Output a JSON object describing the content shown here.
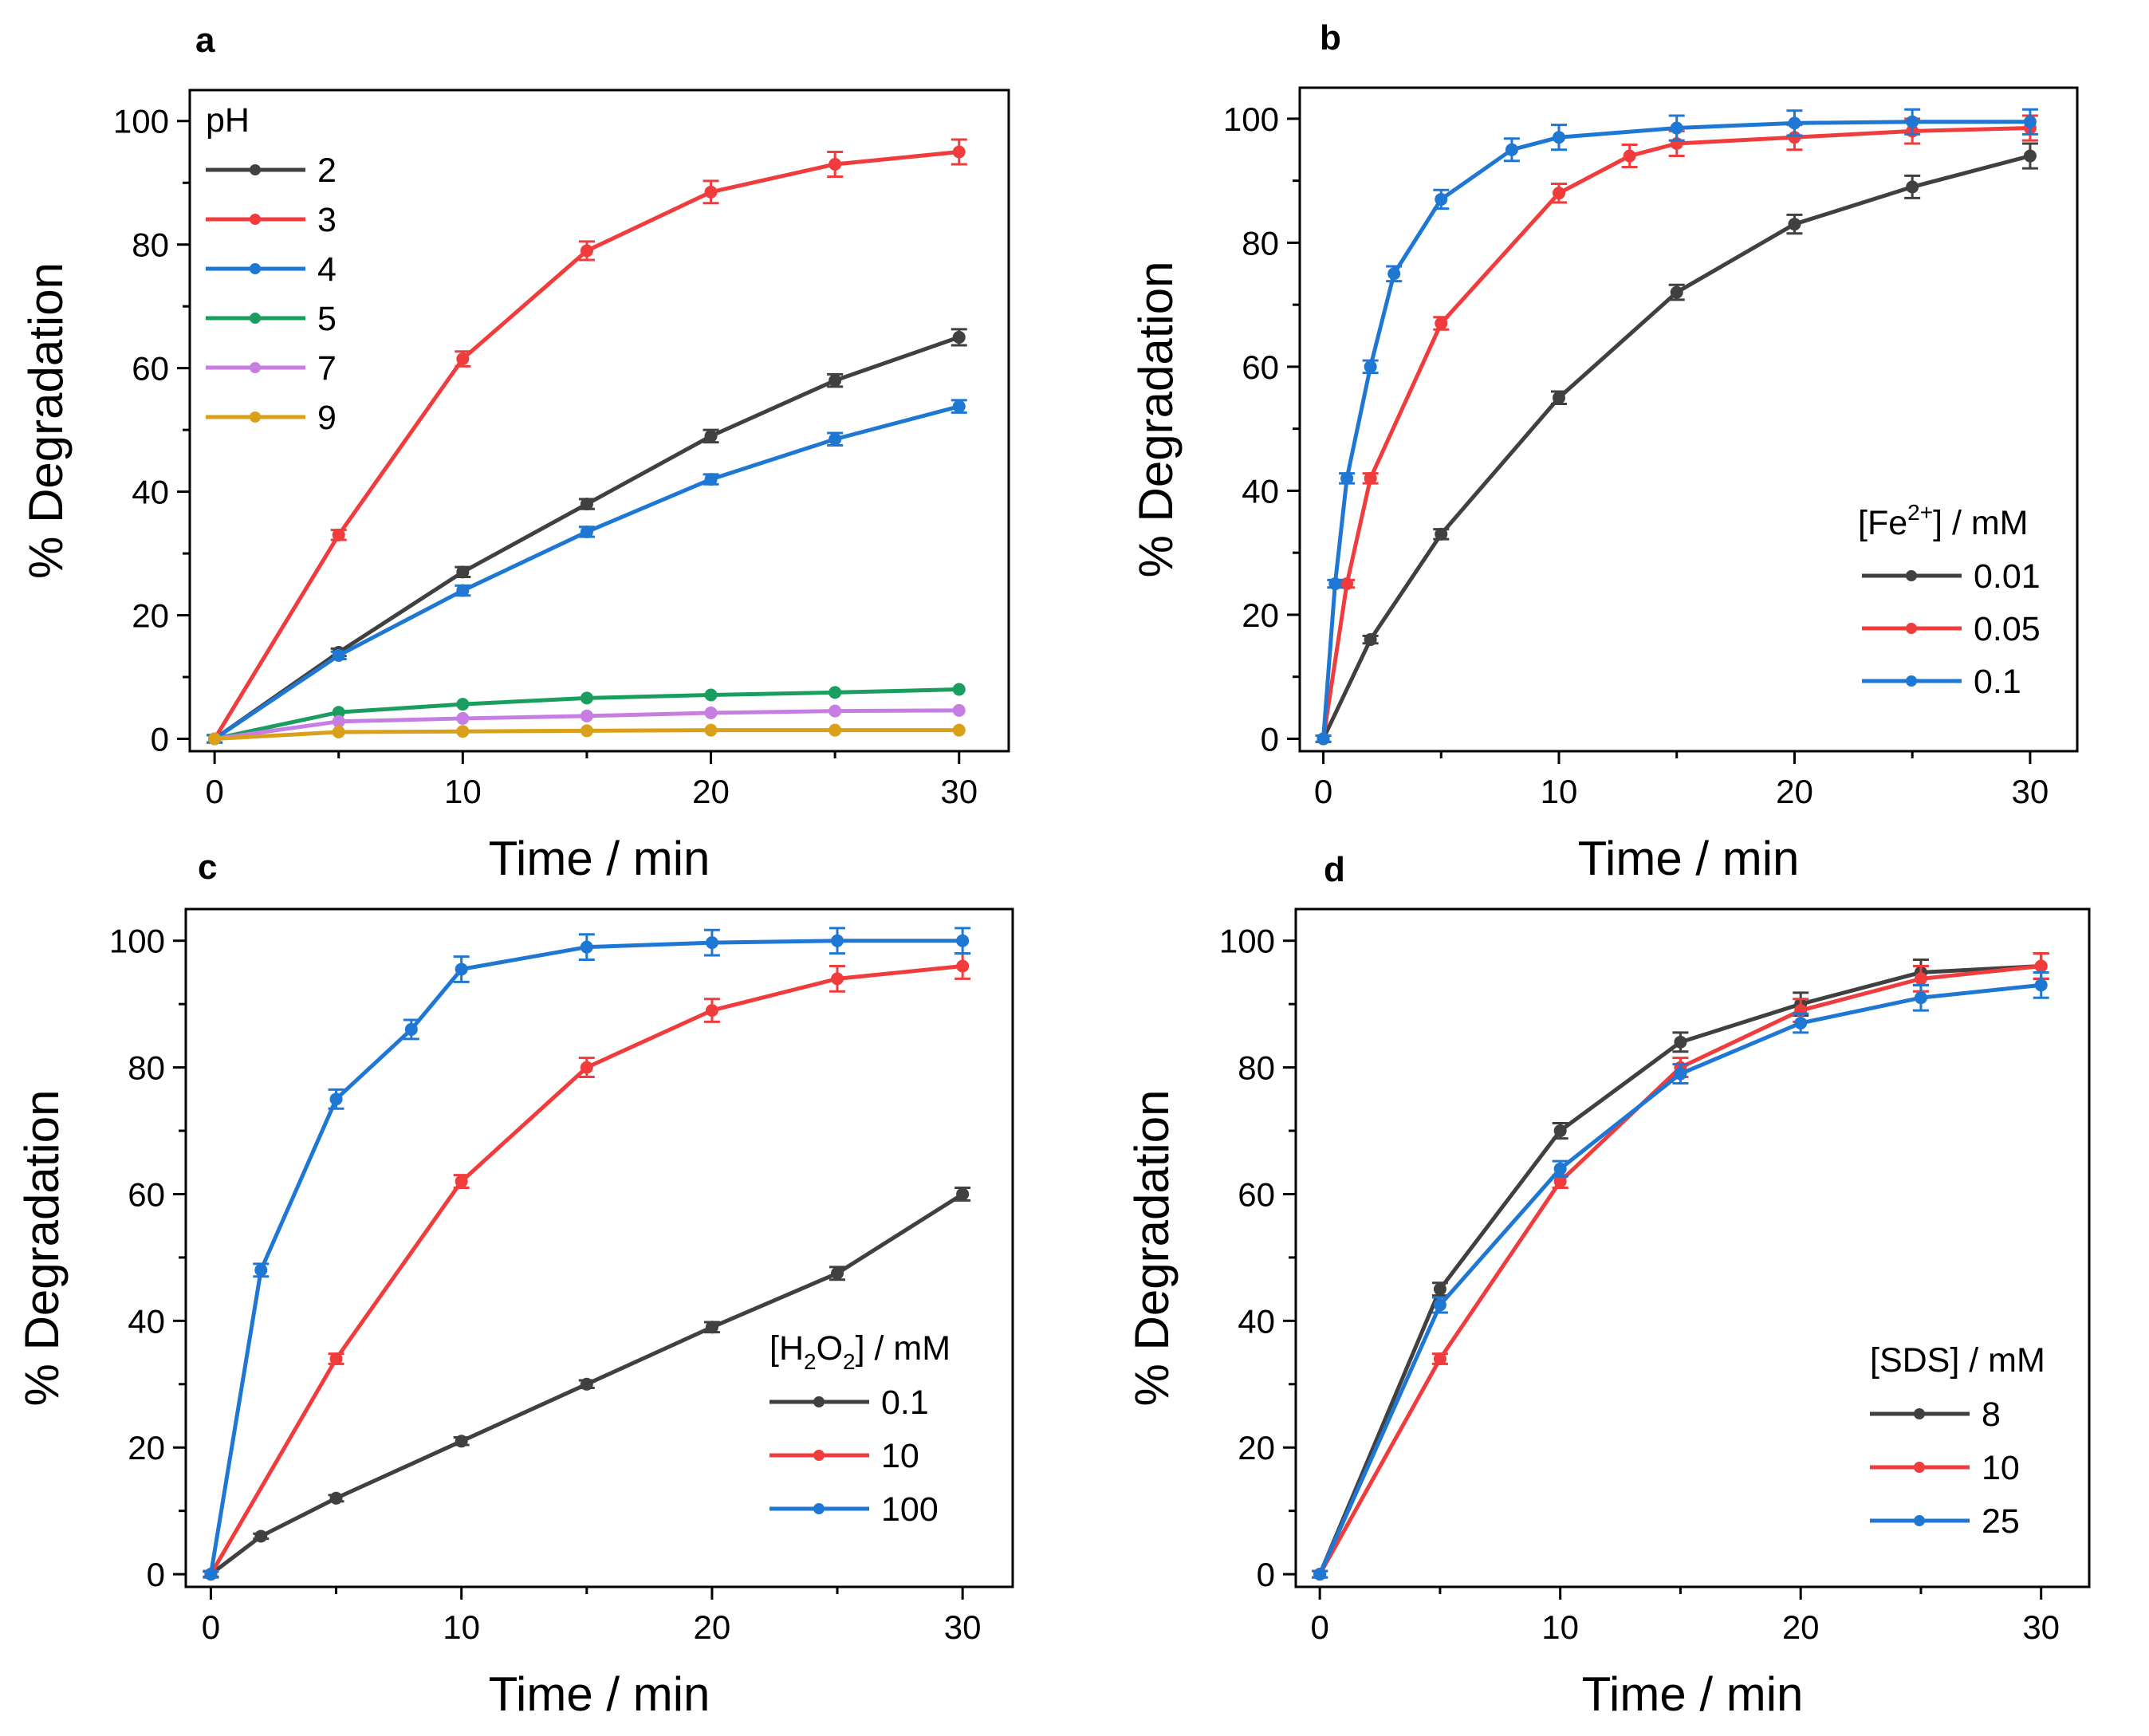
{
  "chart_data": [
    {
      "type": "line",
      "title": "a",
      "xlabel": "Time / min",
      "ylabel": "% Degradation",
      "xlim": [
        -1,
        32
      ],
      "ylim": [
        -2,
        105
      ],
      "xticks": [
        0,
        10,
        20,
        30
      ],
      "yticks": [
        0,
        20,
        40,
        60,
        80,
        100
      ],
      "legend_title": {
        "text": "pH",
        "pre": "pH",
        "sub": "",
        "sup": "",
        "post": ""
      },
      "legend_position": "top-left",
      "grid": false,
      "series": [
        {
          "name": "2",
          "color": "#404040",
          "x": [
            0,
            5,
            10,
            15,
            20,
            25,
            30
          ],
          "y": [
            0,
            14,
            27,
            38,
            49,
            58,
            65
          ],
          "err": [
            0.6,
            0.6,
            0.8,
            0.8,
            1.0,
            1.0,
            1.3
          ]
        },
        {
          "name": "3",
          "color": "#f03c3c",
          "x": [
            0,
            5,
            10,
            15,
            20,
            25,
            30
          ],
          "y": [
            0,
            33,
            61.5,
            79,
            88.5,
            93,
            95
          ],
          "err": [
            0.6,
            0.8,
            1.2,
            1.5,
            1.8,
            2.0,
            2.0
          ]
        },
        {
          "name": "4",
          "color": "#1f77d4",
          "x": [
            0,
            5,
            10,
            15,
            20,
            25,
            30
          ],
          "y": [
            0,
            13.5,
            24,
            33.5,
            42,
            48.5,
            53.8
          ],
          "err": [
            0.6,
            0.6,
            0.8,
            0.8,
            0.8,
            1.0,
            1.0
          ]
        },
        {
          "name": "5",
          "color": "#1a9e60",
          "x": [
            0,
            5,
            10,
            15,
            20,
            25,
            30
          ],
          "y": [
            0,
            4.3,
            5.6,
            6.6,
            7.1,
            7.5,
            8.0
          ],
          "err": [
            0,
            0,
            0,
            0,
            0,
            0,
            0
          ]
        },
        {
          "name": "7",
          "color": "#c77ee3",
          "x": [
            0,
            5,
            10,
            15,
            20,
            25,
            30
          ],
          "y": [
            0,
            2.8,
            3.3,
            3.7,
            4.2,
            4.5,
            4.6
          ],
          "err": [
            0,
            0,
            0,
            0,
            0,
            0,
            0
          ]
        },
        {
          "name": "9",
          "color": "#dba01a",
          "x": [
            0,
            5,
            10,
            15,
            20,
            25,
            30
          ],
          "y": [
            0,
            1.1,
            1.2,
            1.3,
            1.4,
            1.4,
            1.4
          ],
          "err": [
            0,
            0,
            0,
            0,
            0,
            0,
            0
          ]
        }
      ]
    },
    {
      "type": "line",
      "title": "b",
      "xlabel": "Time / min",
      "ylabel": "% Degradation",
      "xlim": [
        -1,
        32
      ],
      "ylim": [
        -2,
        105
      ],
      "xticks": [
        0,
        10,
        20,
        30
      ],
      "yticks": [
        0,
        20,
        40,
        60,
        80,
        100
      ],
      "legend_title": {
        "text": "[Fe2+] / mM",
        "pre": "[Fe",
        "sub": "",
        "sup": "2+",
        "post": "] / mM"
      },
      "legend_position": "bottom-right",
      "grid": false,
      "series": [
        {
          "name": "0.01",
          "color": "#404040",
          "x": [
            0,
            2,
            5,
            10,
            15,
            20,
            25,
            30
          ],
          "y": [
            0,
            16,
            33,
            55,
            72,
            83,
            89,
            94
          ],
          "err": [
            0.5,
            0.6,
            0.8,
            1.0,
            1.2,
            1.5,
            1.8,
            2.0
          ]
        },
        {
          "name": "0.05",
          "color": "#f03c3c",
          "x": [
            0,
            1,
            2,
            5,
            10,
            13,
            15,
            20,
            25,
            30
          ],
          "y": [
            0,
            25,
            42,
            67,
            88,
            94,
            96,
            97,
            98,
            98.5
          ],
          "err": [
            0.5,
            0.6,
            0.8,
            1.0,
            1.5,
            1.8,
            2.0,
            2.0,
            2.0,
            2.0
          ]
        },
        {
          "name": "0.1",
          "color": "#1f77d4",
          "x": [
            0,
            0.5,
            1,
            2,
            3,
            5,
            8,
            10,
            15,
            20,
            25,
            30
          ],
          "y": [
            0,
            25,
            42,
            60,
            75,
            87,
            95,
            97,
            98.5,
            99.3,
            99.5,
            99.5
          ],
          "err": [
            0.5,
            0.6,
            0.8,
            1.0,
            1.2,
            1.5,
            1.8,
            2.0,
            2.0,
            2.0,
            2.0,
            2.0
          ]
        }
      ]
    },
    {
      "type": "line",
      "title": "c",
      "xlabel": "Time / min",
      "ylabel": "% Degradation",
      "xlim": [
        -1,
        32
      ],
      "ylim": [
        -2,
        105
      ],
      "xticks": [
        0,
        10,
        20,
        30
      ],
      "yticks": [
        0,
        20,
        40,
        60,
        80,
        100
      ],
      "legend_title": {
        "text": "[H2O2] / mM",
        "pre": "[H",
        "sub": "2",
        "sup": "",
        "post": "O2] / mM"
      },
      "legend_position": "bottom-right",
      "grid": false,
      "series": [
        {
          "name": "0.1",
          "color": "#404040",
          "x": [
            0,
            2,
            5,
            10,
            15,
            20,
            25,
            30
          ],
          "y": [
            0,
            6,
            12,
            21,
            30,
            39,
            47.5,
            60
          ],
          "err": [
            0.4,
            0.4,
            0.5,
            0.6,
            0.6,
            0.8,
            1.0,
            1.0
          ]
        },
        {
          "name": "10",
          "color": "#f03c3c",
          "x": [
            0,
            5,
            10,
            15,
            20,
            25,
            30
          ],
          "y": [
            0,
            34,
            62,
            80,
            89,
            94,
            96
          ],
          "err": [
            0.5,
            0.8,
            1.0,
            1.5,
            1.8,
            2.0,
            2.0
          ]
        },
        {
          "name": "100",
          "color": "#1f77d4",
          "x": [
            0,
            2,
            5,
            8,
            10,
            15,
            20,
            25,
            30
          ],
          "y": [
            0,
            48,
            75,
            86,
            95.5,
            99,
            99.7,
            100,
            100
          ],
          "err": [
            0.5,
            1.0,
            1.5,
            1.5,
            2.0,
            2.0,
            2.0,
            2.0,
            2.0
          ]
        }
      ]
    },
    {
      "type": "line",
      "title": "d",
      "xlabel": "Time / min",
      "ylabel": "% Degradation",
      "xlim": [
        -1,
        32
      ],
      "ylim": [
        -2,
        105
      ],
      "xticks": [
        0,
        10,
        20,
        30
      ],
      "yticks": [
        0,
        20,
        40,
        60,
        80,
        100
      ],
      "legend_title": {
        "text": "[SDS] / mM",
        "pre": "[SDS] / mM",
        "sub": "",
        "sup": "",
        "post": ""
      },
      "legend_position": "bottom-right",
      "grid": false,
      "series": [
        {
          "name": "8",
          "color": "#404040",
          "x": [
            0,
            5,
            10,
            15,
            20,
            25,
            30
          ],
          "y": [
            0,
            45,
            70,
            84,
            90,
            95,
            96
          ],
          "err": [
            0.5,
            1.0,
            1.2,
            1.5,
            1.8,
            2.0,
            2.0
          ]
        },
        {
          "name": "10",
          "color": "#f03c3c",
          "x": [
            0,
            5,
            10,
            15,
            20,
            25,
            30
          ],
          "y": [
            0,
            34,
            62,
            80,
            89,
            94,
            96
          ],
          "err": [
            0.5,
            0.8,
            1.0,
            1.5,
            1.8,
            2.0,
            2.0
          ]
        },
        {
          "name": "25",
          "color": "#1f77d4",
          "x": [
            0,
            5,
            10,
            15,
            20,
            25,
            30
          ],
          "y": [
            0,
            42.5,
            64,
            79,
            87,
            91,
            93
          ],
          "err": [
            0.5,
            1.2,
            1.2,
            1.5,
            1.5,
            2.0,
            2.0
          ]
        }
      ]
    }
  ]
}
